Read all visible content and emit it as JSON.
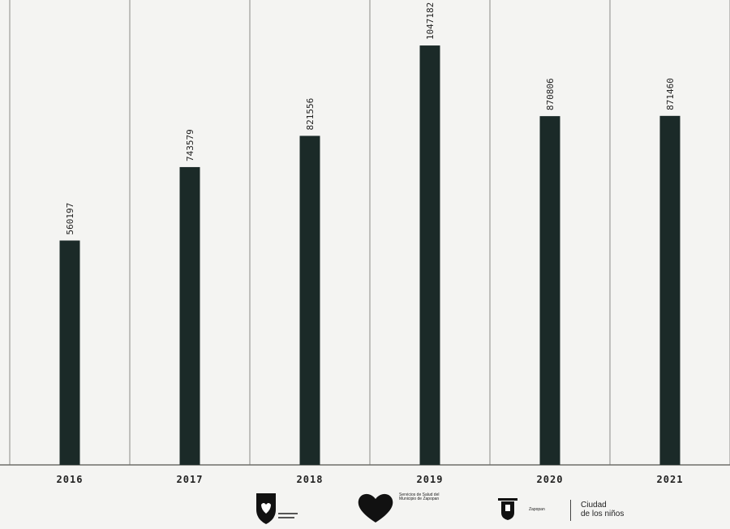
{
  "chart_data": {
    "type": "bar",
    "categories": [
      "2016",
      "2017",
      "2018",
      "2019",
      "2020",
      "2021"
    ],
    "values": [
      560197,
      743579,
      821556,
      1047182,
      870806,
      871460
    ],
    "value_labels": [
      "560197",
      "743579",
      "821556",
      "1047182",
      "870806",
      "871460"
    ],
    "title": "",
    "xlabel": "",
    "ylabel": "",
    "ylim": [
      0,
      1100000
    ],
    "grid": "vertical separators",
    "legend": "none",
    "bar_color": "#1b2a28"
  },
  "footer": {
    "logo2_text": "Servicios de Salud del Municipio de Zapopan",
    "logo3_text": "Zapopan",
    "ciudad_line1": "Ciudad",
    "ciudad_line2": "de los niños"
  },
  "colors": {
    "background": "#f4f4f2",
    "logo": "#111111"
  }
}
